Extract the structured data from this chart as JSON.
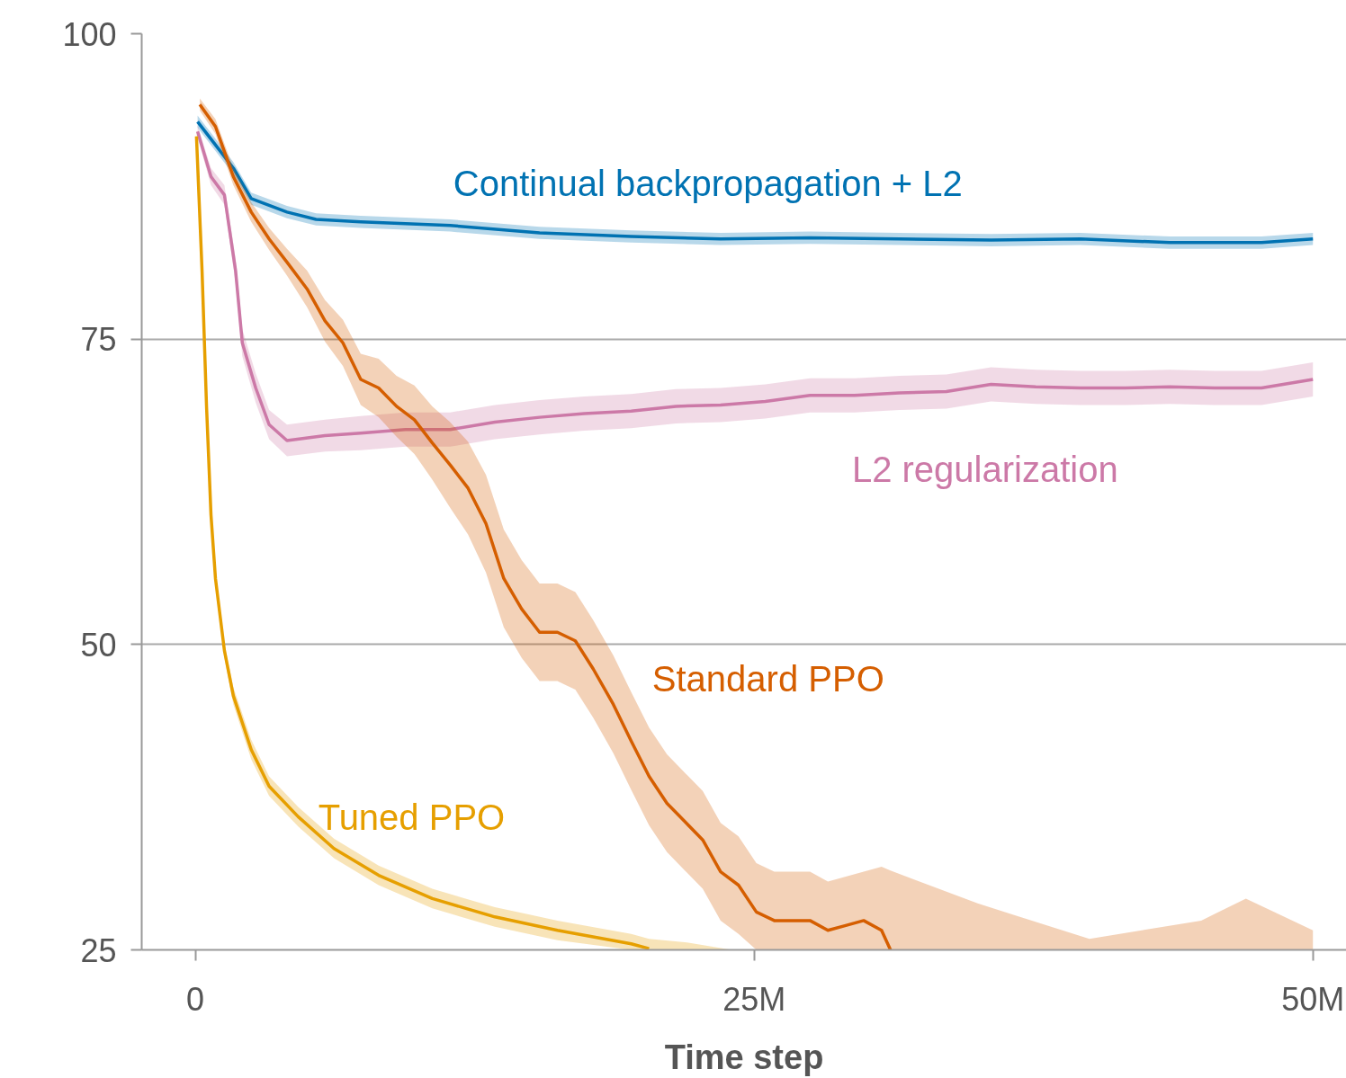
{
  "chart_data": {
    "type": "line",
    "xlabel": "Time step",
    "xlim": [
      -2400000,
      51500000
    ],
    "ylim": [
      25,
      100
    ],
    "xticks": [
      0,
      {
        "value": 25000000,
        "label": "25M"
      },
      {
        "value": 50000000,
        "label": "50M"
      }
    ],
    "yticks": [
      25,
      50,
      75,
      100
    ],
    "grid": "y",
    "marker": "none",
    "line_style": "solid",
    "series": [
      {
        "name": "Continual backpropagation + L2",
        "color": "#0072b2",
        "x": [
          100000,
          1700000,
          2500000,
          4100000,
          5400000,
          7400000,
          11400000,
          15400000,
          19500000,
          23500000,
          27500000,
          31500000,
          35600000,
          39600000,
          43600000,
          47700000,
          50000000
        ],
        "values": [
          92.8,
          89,
          86.5,
          85.4,
          84.8,
          84.6,
          84.3,
          83.7,
          83.4,
          83.2,
          83.3,
          83.2,
          83.1,
          83.2,
          82.9,
          82.9,
          83.2
        ],
        "lower": [
          92.3,
          88.5,
          86,
          84.9,
          84.3,
          84.1,
          83.8,
          83.2,
          82.9,
          82.7,
          82.8,
          82.7,
          82.6,
          82.7,
          82.4,
          82.4,
          82.7
        ],
        "upper": [
          93.3,
          89.5,
          87,
          85.9,
          85.3,
          85.1,
          84.8,
          84.2,
          83.9,
          83.7,
          83.8,
          83.7,
          83.6,
          83.7,
          83.4,
          83.4,
          83.7
        ]
      },
      {
        "name": "L2 regularization",
        "color": "#cc79a7",
        "x": [
          100000,
          700000,
          1300000,
          1800000,
          2100000,
          2700000,
          3300000,
          4100000,
          5800000,
          7400000,
          9400000,
          11400000,
          13400000,
          15400000,
          17400000,
          19500000,
          21500000,
          23500000,
          25500000,
          27500000,
          29500000,
          31500000,
          33600000,
          35600000,
          37600000,
          39600000,
          41600000,
          43600000,
          45600000,
          47700000,
          50000000
        ],
        "values": [
          92,
          88.3,
          86.8,
          80.6,
          74.7,
          71,
          68,
          66.7,
          67.1,
          67.3,
          67.6,
          67.6,
          68.2,
          68.6,
          68.9,
          69.1,
          69.5,
          69.6,
          69.9,
          70.4,
          70.4,
          70.6,
          70.7,
          71.3,
          71.1,
          71,
          71,
          71.1,
          71,
          71,
          71.7
        ],
        "lower": [
          91.5,
          87.6,
          86,
          79.6,
          73.6,
          69.8,
          66.8,
          65.4,
          65.8,
          65.9,
          66.2,
          66.2,
          66.8,
          67.2,
          67.5,
          67.7,
          68.1,
          68.2,
          68.5,
          69,
          69,
          69.2,
          69.3,
          69.9,
          69.7,
          69.6,
          69.6,
          69.7,
          69.6,
          69.6,
          70.3
        ],
        "upper": [
          92.5,
          89,
          87.6,
          81.6,
          75.8,
          72.2,
          69.2,
          68,
          68.4,
          68.7,
          69,
          69,
          69.6,
          70,
          70.3,
          70.5,
          70.9,
          71,
          71.3,
          71.8,
          71.8,
          72,
          72.1,
          72.7,
          72.5,
          72.4,
          72.4,
          72.5,
          72.4,
          72.4,
          73.1
        ]
      },
      {
        "name": "Standard PPO",
        "color": "#d55e00",
        "x": [
          200000,
          900000,
          1700000,
          2500000,
          3300000,
          4100000,
          5000000,
          5800000,
          6600000,
          7400000,
          8200000,
          9000000,
          9800000,
          10600000,
          11400000,
          12200000,
          13000000,
          13800000,
          14600000,
          15400000,
          16200000,
          17000000,
          17800000,
          18700000,
          19500000,
          20300000,
          21100000,
          21900000,
          22700000,
          23500000,
          24300000,
          25100000,
          25900000,
          26700000,
          27500000,
          28300000,
          29100000,
          29900000,
          30700000,
          31100000,
          35000000,
          40000000,
          45000000,
          47000000,
          50000000
        ],
        "values": [
          94.2,
          92.4,
          88.3,
          85.4,
          83.2,
          81.3,
          79.1,
          76.5,
          74.7,
          71.7,
          71,
          69.5,
          68.4,
          66.5,
          64.7,
          62.8,
          59.9,
          55.4,
          52.9,
          51,
          51,
          50.3,
          48,
          45.1,
          42.1,
          39.2,
          37,
          35.5,
          34,
          31.4,
          30.3,
          28.1,
          27.4,
          27.4,
          27.4,
          26.6,
          27,
          27.4,
          26.6,
          25,
          null,
          null,
          null,
          null,
          null
        ],
        "lower": [
          93.7,
          91.8,
          87.6,
          84.6,
          82.3,
          80.2,
          77.6,
          74.8,
          72.8,
          69.6,
          68.6,
          67,
          65.6,
          63.5,
          61.2,
          59,
          55.9,
          51.4,
          48.9,
          47,
          47,
          46.3,
          44,
          41.1,
          38.1,
          35.2,
          33,
          31.5,
          30,
          27.4,
          26.3,
          25,
          25,
          25,
          25,
          25,
          25,
          25,
          25,
          25,
          25,
          25,
          25,
          25,
          25
        ],
        "upper": [
          94.7,
          93,
          89,
          86.2,
          84.1,
          82.4,
          80.6,
          78.2,
          76.6,
          73.8,
          73.4,
          72,
          71.2,
          69.5,
          68.2,
          66.6,
          63.9,
          59.4,
          56.9,
          55,
          55,
          54.3,
          52,
          49.1,
          46.1,
          43.2,
          41,
          39.5,
          38,
          35.4,
          34.3,
          32.1,
          31.4,
          31.4,
          31.4,
          30.6,
          31,
          31.4,
          31.8,
          31.5,
          28.8,
          25.9,
          27.4,
          29.2,
          26.6
        ]
      },
      {
        "name": "Tuned PPO",
        "color": "#e69f00",
        "x": [
          50000,
          300000,
          500000,
          700000,
          900000,
          1300000,
          1700000,
          2500000,
          3300000,
          4600000,
          6200000,
          8200000,
          10600000,
          13400000,
          16200000,
          19500000,
          20300000,
          22000000,
          24000000
        ],
        "values": [
          91.6,
          80.6,
          69.5,
          60.6,
          55.4,
          49.5,
          45.8,
          41.4,
          38.4,
          35.9,
          33.3,
          31.1,
          29.2,
          27.7,
          26.6,
          25.5,
          25.1,
          null,
          null
        ],
        "lower": [
          91.1,
          80,
          68.9,
          60,
          54.8,
          48.9,
          45.1,
          40.6,
          37.6,
          35.1,
          32.5,
          30.3,
          28.4,
          26.9,
          25.8,
          25,
          25,
          25,
          25
        ],
        "upper": [
          92.1,
          81.2,
          70.1,
          61.2,
          56,
          50.1,
          46.5,
          42.2,
          39.2,
          36.7,
          34.1,
          31.9,
          30,
          28.5,
          27.4,
          26.3,
          25.9,
          25.6,
          25
        ]
      }
    ]
  }
}
